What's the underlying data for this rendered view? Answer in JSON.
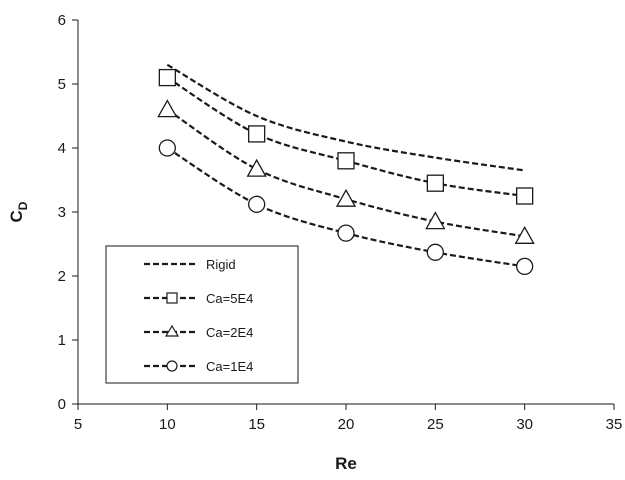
{
  "chart_data": {
    "type": "line",
    "title": "",
    "xlabel": "Re",
    "ylabel": {
      "main": "C",
      "sub": "D"
    },
    "xlim": [
      5,
      35
    ],
    "ylim": [
      0,
      6
    ],
    "xticks": [
      5,
      10,
      15,
      20,
      25,
      30,
      35
    ],
    "yticks": [
      0,
      1,
      2,
      3,
      4,
      5,
      6
    ],
    "grid": false,
    "legend_position": "bottom-left",
    "series": [
      {
        "name": "Rigid",
        "marker": "none",
        "line": "dashed",
        "color": "#1a1a1a",
        "x": [
          10,
          15,
          20,
          25,
          30
        ],
        "y": [
          5.3,
          4.5,
          4.1,
          3.85,
          3.65
        ]
      },
      {
        "name": "Ca=5E4",
        "marker": "square",
        "line": "dashed",
        "color": "#1a1a1a",
        "x": [
          10,
          15,
          20,
          25,
          30
        ],
        "y": [
          5.1,
          4.22,
          3.8,
          3.45,
          3.25
        ]
      },
      {
        "name": "Ca=2E4",
        "marker": "triangle",
        "line": "dashed",
        "color": "#1a1a1a",
        "x": [
          10,
          15,
          20,
          25,
          30
        ],
        "y": [
          4.6,
          3.67,
          3.2,
          2.85,
          2.62
        ]
      },
      {
        "name": "Ca=1E4",
        "marker": "circle",
        "line": "dashed",
        "color": "#1a1a1a",
        "x": [
          10,
          15,
          20,
          25,
          30
        ],
        "y": [
          4.0,
          3.12,
          2.67,
          2.37,
          2.15
        ]
      }
    ]
  }
}
